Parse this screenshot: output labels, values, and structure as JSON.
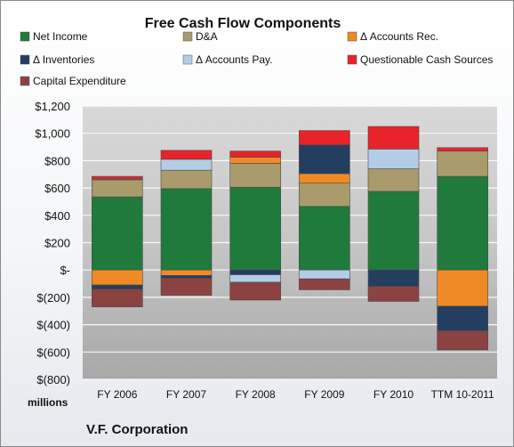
{
  "chart_data": {
    "type": "bar",
    "stacked": true,
    "title": "Free Cash Flow Components",
    "unit_label": "millions",
    "company": "V.F. Corporation",
    "categories": [
      "FY 2006",
      "FY 2007",
      "FY 2008",
      "FY 2009",
      "FY 2010",
      "TTM 10-2011"
    ],
    "ylim": [
      -800,
      1200
    ],
    "yticks": [
      1200,
      1000,
      800,
      600,
      400,
      200,
      0,
      -200,
      -400,
      -600,
      -800
    ],
    "ytick_labels": [
      "$1,200",
      "$1,000",
      "$800",
      "$600",
      "$400",
      "$200",
      "$-",
      "$(200)",
      "$(400)",
      "$(600)",
      "$(800)"
    ],
    "grid": true,
    "legend_position": "top",
    "series": [
      {
        "name": "Net Income",
        "color": "#1f7a3c",
        "values": [
          535,
          595,
          605,
          465,
          575,
          685
        ]
      },
      {
        "name": "D&A",
        "color": "#a99b6b",
        "values": [
          125,
          135,
          175,
          170,
          165,
          185
        ]
      },
      {
        "name": "Δ Accounts Rec.",
        "color": "#f08a24",
        "values": [
          -110,
          -40,
          45,
          70,
          0,
          -265
        ]
      },
      {
        "name": "Δ Inventories",
        "color": "#243e60",
        "values": [
          -30,
          -20,
          -35,
          210,
          -120,
          -180
        ]
      },
      {
        "name": "Δ Accounts Pay.",
        "color": "#b3cde8",
        "values": [
          5,
          80,
          -55,
          -65,
          145,
          0
        ]
      },
      {
        "name": "Questionable Cash Sources",
        "color": "#e8232a",
        "values": [
          20,
          65,
          45,
          105,
          165,
          25
        ]
      },
      {
        "name": "Capital Expenditure",
        "color": "#8d4242",
        "values": [
          -130,
          -125,
          -130,
          -80,
          -110,
          -140
        ]
      }
    ]
  }
}
